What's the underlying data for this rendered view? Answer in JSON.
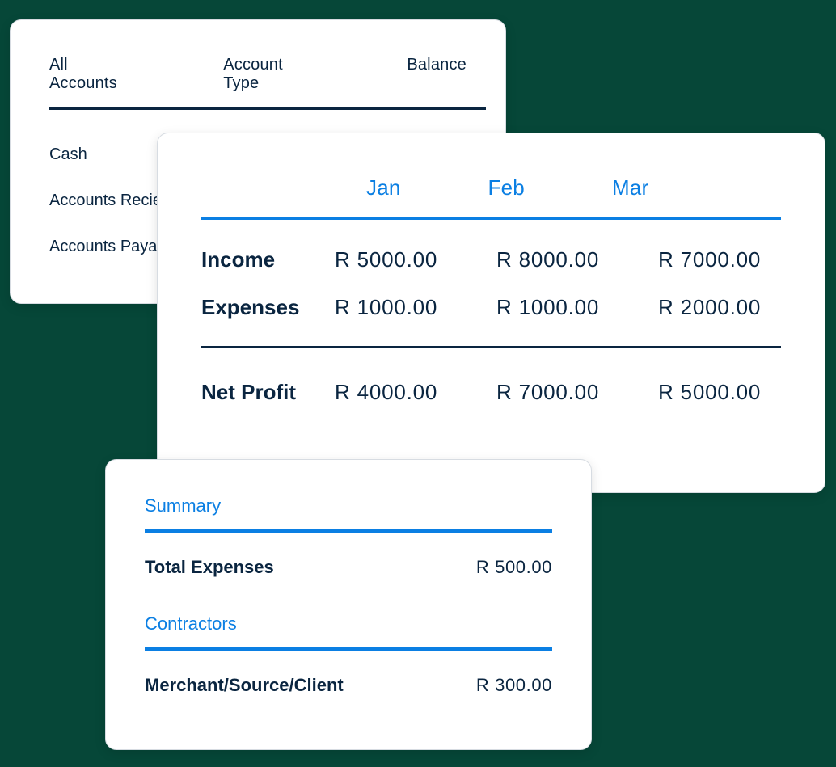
{
  "colors": {
    "background": "#064738",
    "card_bg": "#ffffff",
    "card_border": "#d7dce2",
    "text_dark": "#0a2540",
    "accent_blue": "#0b7fe3"
  },
  "accounts_card": {
    "headers": [
      "All Accounts",
      "Account Type",
      "Balance"
    ],
    "rows": [
      "Cash",
      "Accounts Recievable",
      "Accounts Payable"
    ]
  },
  "income_card": {
    "months": [
      "Jan",
      "Feb",
      "Mar"
    ],
    "rows": [
      {
        "label": "Income",
        "values": [
          "R 5000.00",
          "R 8000.00",
          "R 7000.00"
        ]
      },
      {
        "label": "Expenses",
        "values": [
          "R 1000.00",
          "R 1000.00",
          "R 2000.00"
        ]
      }
    ],
    "net": {
      "label": "Net Profit",
      "values": [
        "R 4000.00",
        "R 7000.00",
        "R 5000.00"
      ]
    }
  },
  "summary_card": {
    "section1": {
      "title": "Summary",
      "label": "Total Expenses",
      "value": "R 500.00"
    },
    "section2": {
      "title": "Contractors",
      "label": "Merchant/Source/Client",
      "value": "R 300.00"
    }
  }
}
